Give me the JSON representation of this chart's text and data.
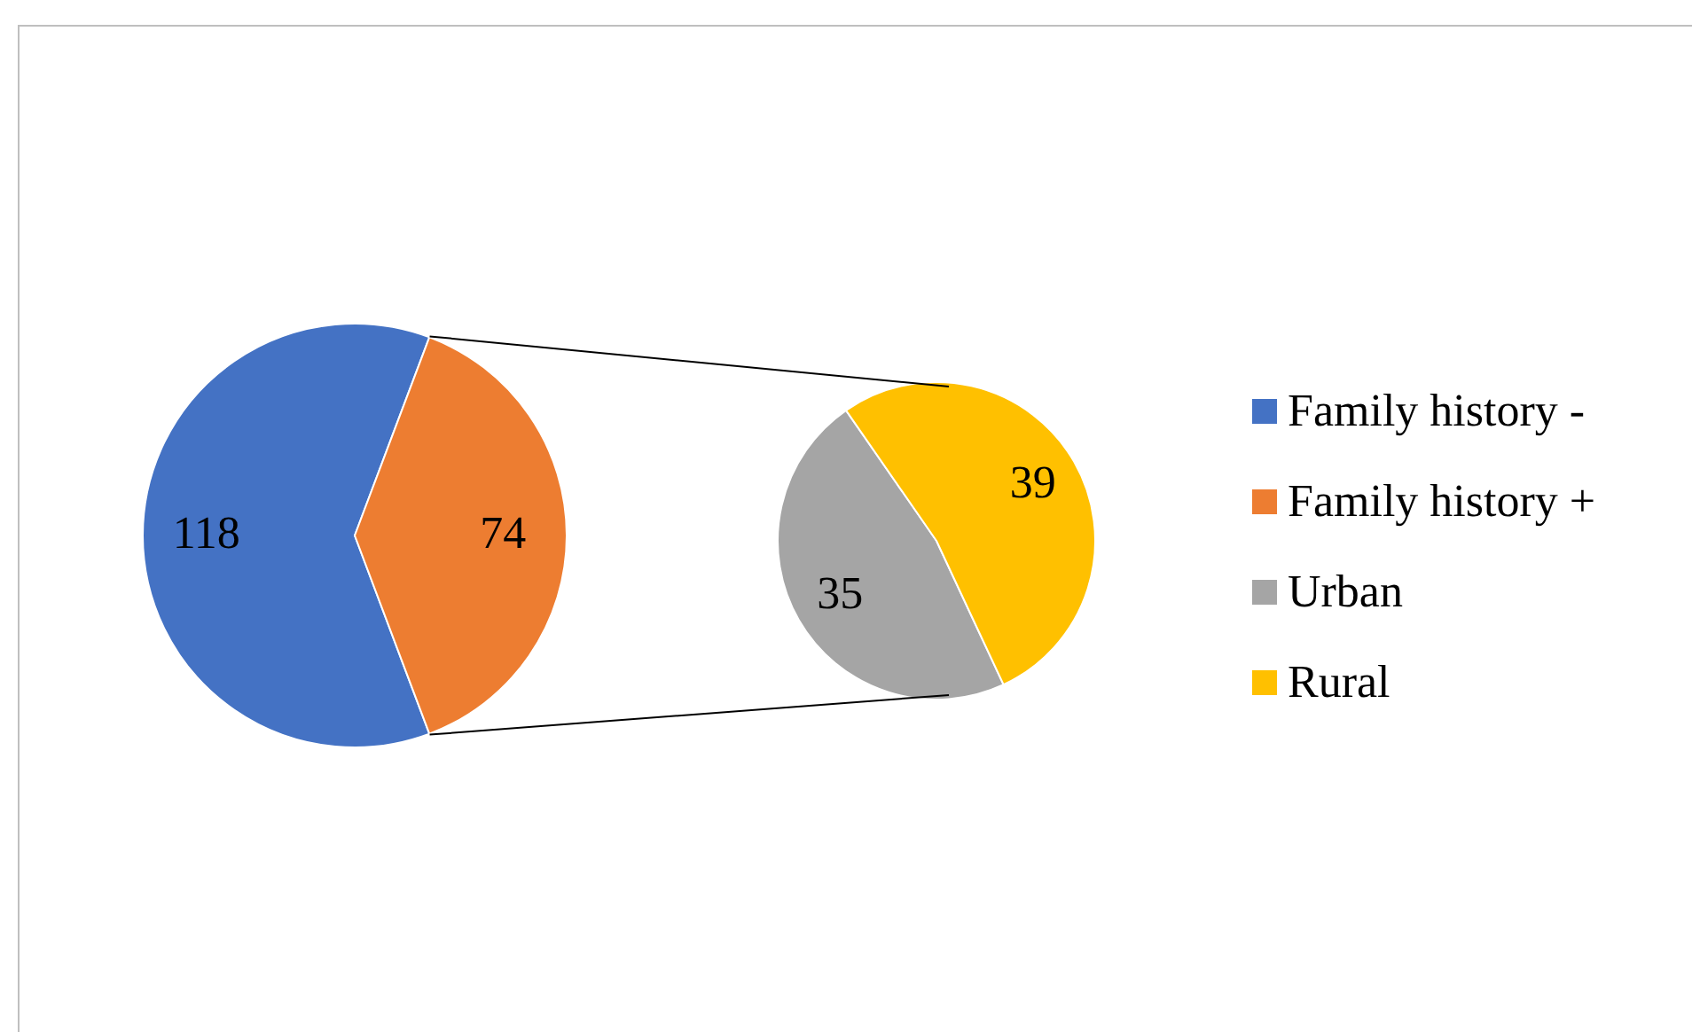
{
  "chart_data": [
    {
      "type": "pie",
      "categories": [
        "Family history -",
        "Family history +"
      ],
      "values": [
        118,
        74
      ],
      "colors": [
        "#4472c4",
        "#ed7d31"
      ],
      "data_labels": true,
      "legend": "right"
    },
    {
      "type": "pie",
      "categories": [
        "Urban",
        "Rural"
      ],
      "values": [
        35,
        39
      ],
      "colors": [
        "#a5a5a5",
        "#ffc000"
      ],
      "data_labels": true,
      "legend": "right"
    }
  ]
}
